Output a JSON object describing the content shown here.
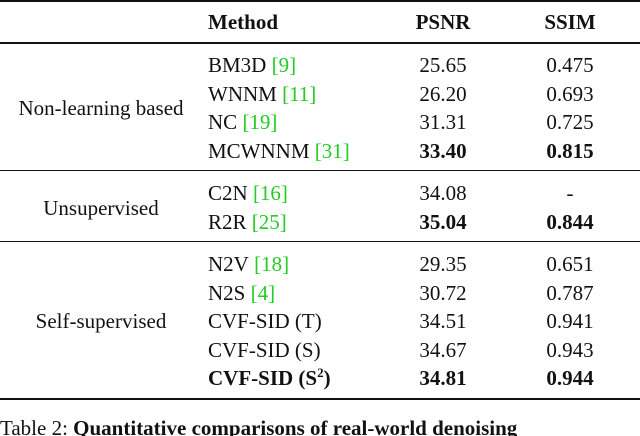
{
  "table": {
    "header": {
      "method": "Method",
      "psnr": "PSNR",
      "ssim": "SSIM"
    },
    "groups": [
      {
        "label": "Non-learning based",
        "rows": [
          {
            "method": "BM3D",
            "cite": "[9]",
            "psnr": "25.65",
            "ssim": "0.475"
          },
          {
            "method": "WNNM",
            "cite": "[11]",
            "psnr": "26.20",
            "ssim": "0.693"
          },
          {
            "method": "NC",
            "cite": "[19]",
            "psnr": "31.31",
            "ssim": "0.725"
          },
          {
            "method": "MCWNNM",
            "cite": "[31]",
            "psnr": "33.40",
            "ssim": "0.815",
            "bold_psnr": true,
            "bold_ssim": true
          }
        ]
      },
      {
        "label": "Unsupervised",
        "rows": [
          {
            "method": "C2N",
            "cite": "[16]",
            "psnr": "34.08",
            "ssim": "-"
          },
          {
            "method": "R2R",
            "cite": "[25]",
            "psnr": "35.04",
            "ssim": "0.844",
            "bold_psnr": true,
            "bold_ssim": true
          }
        ]
      },
      {
        "label": "Self-supervised",
        "rows": [
          {
            "method": "N2V",
            "cite": "[18]",
            "psnr": "29.35",
            "ssim": "0.651"
          },
          {
            "method": "N2S",
            "cite": "[4]",
            "psnr": "30.72",
            "ssim": "0.787"
          },
          {
            "method": "CVF-SID (T)",
            "psnr": "34.51",
            "ssim": "0.941"
          },
          {
            "method": "CVF-SID (S)",
            "psnr": "34.67",
            "ssim": "0.943"
          },
          {
            "method": "CVF-SID (S",
            "sup": "2",
            "method_end": ")",
            "psnr": "34.81",
            "ssim": "0.944",
            "bold_method": true,
            "bold_psnr": true,
            "bold_ssim": true
          }
        ]
      }
    ]
  },
  "caption": {
    "label": "Table 2:",
    "text": "Quantitative comparisons of real-world denoising"
  }
}
